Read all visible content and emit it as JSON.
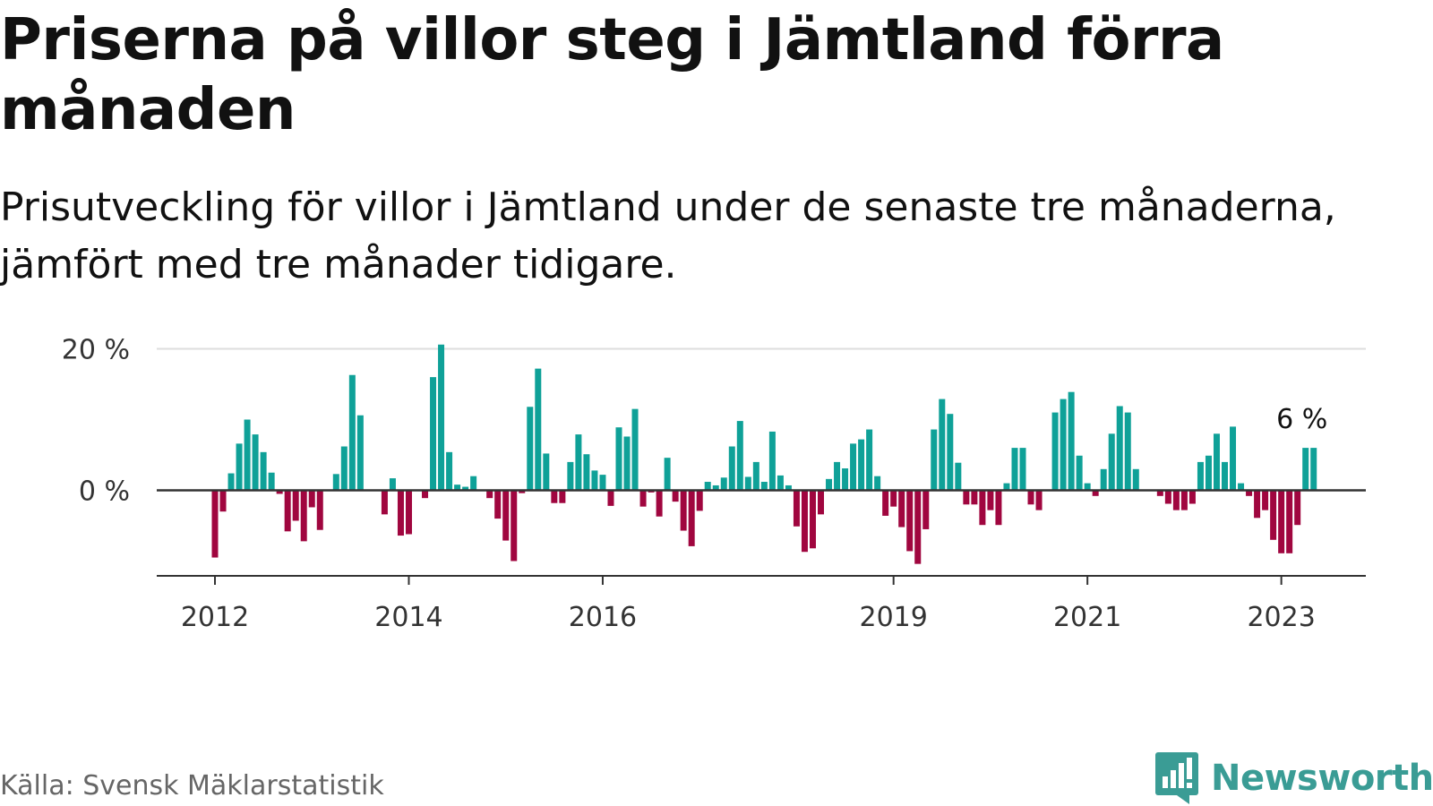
{
  "title": "Priserna på villor steg i Jämtland förra månaden",
  "subtitle": "Prisutveckling för villor i Jämtland under de senaste tre månaderna, jämfört med tre månader tidigare.",
  "source": "Källa: Svensk Mäklarstatistik",
  "brand": {
    "name": "Newsworthy",
    "color": "#3a9c95"
  },
  "chart_data": {
    "type": "bar",
    "title": "Priserna på villor steg i Jämtland förra månaden",
    "subtitle": "Prisutveckling för villor i Jämtland under de senaste tre månaderna, jämfört med tre månader tidigare.",
    "xlabel": "",
    "ylabel": "",
    "unit": "%",
    "x_start": "2012-01",
    "x_end": "2023-04",
    "ylim": [
      -12,
      20
    ],
    "yticks": [
      {
        "value": 0,
        "label": "0 %"
      },
      {
        "value": 20,
        "label": "20 %"
      }
    ],
    "xticks": [
      {
        "x": "2012-01",
        "label": "2012"
      },
      {
        "x": "2014-01",
        "label": "2014"
      },
      {
        "x": "2016-01",
        "label": "2016"
      },
      {
        "x": "2019-01",
        "label": "2019"
      },
      {
        "x": "2021-01",
        "label": "2021"
      },
      {
        "x": "2023-01",
        "label": "2023"
      }
    ],
    "colors": {
      "positive": "#0fa198",
      "negative": "#a0063f",
      "zero_line": "#333333",
      "grid": "#dddddd",
      "axis": "#333333"
    },
    "grid": true,
    "legend": "none",
    "annotation": {
      "x": "2023-04",
      "label": "6 %"
    },
    "series": [
      {
        "values": [
          -9.5,
          -3,
          2.4,
          6.6,
          10,
          7.9,
          5.4,
          2.5,
          -0.5,
          -5.8,
          -4.3,
          -7.2,
          -2.4,
          -5.6,
          null,
          2.3,
          6.2,
          16.3,
          10.6,
          null,
          null,
          -3.4,
          1.7,
          -6.4,
          -6.2,
          null,
          -1.1,
          16,
          20.6,
          5.4,
          0.8,
          0.5,
          2,
          null,
          -1.1,
          -4,
          -7.1,
          -10,
          -0.4,
          11.8,
          17.2,
          5.2,
          -1.8,
          -1.8,
          4,
          7.9,
          5.1,
          2.8,
          2.2,
          -2.2,
          8.9,
          7.6,
          11.5,
          -2.3,
          -0.3,
          -3.7,
          4.6,
          -1.6,
          -5.7,
          -7.9,
          -2.9,
          1.2,
          0.7,
          1.8,
          6.2,
          9.8,
          1.9,
          4,
          1.2,
          8.3,
          2.1,
          0.7,
          -5.1,
          -8.7,
          -8.2,
          -3.4,
          1.6,
          4,
          3.1,
          6.6,
          7.2,
          8.6,
          2,
          -3.6,
          -2.3,
          -5.2,
          -8.6,
          -10.4,
          -5.5,
          8.6,
          12.9,
          10.8,
          3.9,
          -2,
          -2,
          -4.9,
          -2.8,
          -4.9,
          1,
          6,
          6,
          -2,
          -2.8,
          null,
          11,
          12.9,
          13.9,
          4.9,
          1,
          -0.8,
          3,
          8,
          11.9,
          11,
          3,
          null,
          null,
          -0.8,
          -1.9,
          -2.8,
          -2.8,
          -1.9,
          4,
          4.9,
          8,
          4,
          9,
          1,
          -0.8,
          -3.9,
          -2.8,
          -7,
          -8.9,
          -8.9,
          -4.9,
          6,
          6
        ]
      }
    ]
  }
}
